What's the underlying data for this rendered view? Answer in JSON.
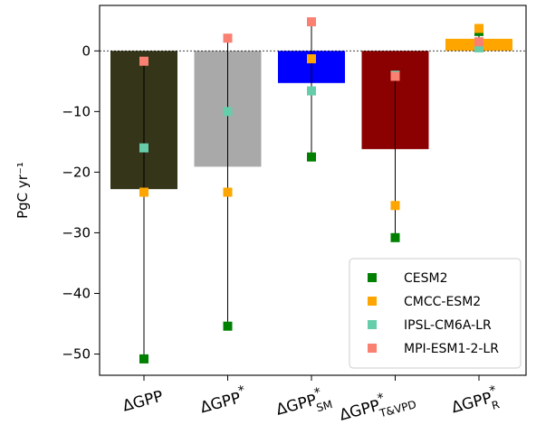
{
  "chart_data": {
    "type": "bar",
    "title": "",
    "ylabel": "PgC yr⁻¹",
    "xlabel": "",
    "ylim": [
      -53.5,
      7.5
    ],
    "yticks": [
      0,
      -10,
      -20,
      -30,
      -40,
      -50
    ],
    "zero_line": true,
    "grid": false,
    "legend_position": "lower-right",
    "categories": [
      {
        "base": "ΔGPP",
        "sup": "",
        "sub": ""
      },
      {
        "base": "ΔGPP",
        "sup": "*",
        "sub": ""
      },
      {
        "base": "ΔGPP",
        "sup": "*",
        "sub": "SM"
      },
      {
        "base": "ΔGPP",
        "sup": "*",
        "sub": "T&VPD"
      },
      {
        "base": "ΔGPP",
        "sup": "*",
        "sub": "R"
      }
    ],
    "bars": {
      "values": [
        -22.8,
        -19.1,
        -5.3,
        -16.2,
        2.0
      ],
      "colors": [
        "#353519",
        "#a9a9a9",
        "#0000ff",
        "#8b0000",
        "#ffa500"
      ]
    },
    "series": [
      {
        "name": "CESM2",
        "color": "#008000",
        "values": [
          -50.8,
          -45.4,
          -17.5,
          -30.8,
          3.2
        ]
      },
      {
        "name": "CMCC-ESM2",
        "color": "#ffa500",
        "values": [
          -23.3,
          -23.3,
          -1.3,
          -25.5,
          3.7
        ]
      },
      {
        "name": "IPSL-CM6A-LR",
        "color": "#66cdaa",
        "values": [
          -16.0,
          -10.0,
          -6.6,
          -4.0,
          0.5
        ]
      },
      {
        "name": "MPI-ESM1-2-LR",
        "color": "#fa8072",
        "values": [
          -1.7,
          2.1,
          4.8,
          -4.2,
          1.5
        ]
      }
    ]
  }
}
